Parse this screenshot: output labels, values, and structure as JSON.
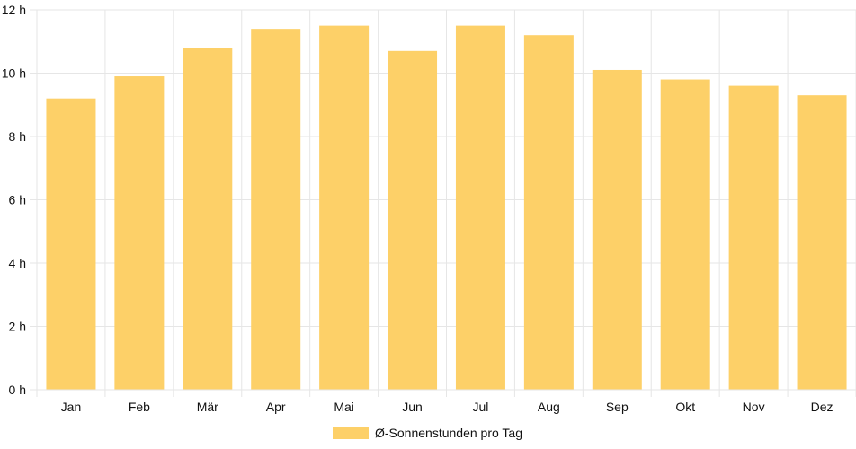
{
  "chart_data": {
    "type": "bar",
    "categories": [
      "Jan",
      "Feb",
      "Mär",
      "Apr",
      "Mai",
      "Jun",
      "Jul",
      "Aug",
      "Sep",
      "Okt",
      "Nov",
      "Dez"
    ],
    "series": [
      {
        "name": "Ø-Sonnenstunden pro Tag",
        "values": [
          9.2,
          9.9,
          10.8,
          11.4,
          11.5,
          10.7,
          11.5,
          11.2,
          10.1,
          9.8,
          9.6,
          9.3
        ],
        "color": "#fdd068"
      }
    ],
    "y_ticks": [
      "0 h",
      "2 h",
      "4 h",
      "6 h",
      "8 h",
      "10 h",
      "12 h"
    ],
    "ylim": [
      0,
      12
    ],
    "grid": true,
    "legend_position": "bottom-center",
    "grid_color": "#e6e6e6"
  }
}
